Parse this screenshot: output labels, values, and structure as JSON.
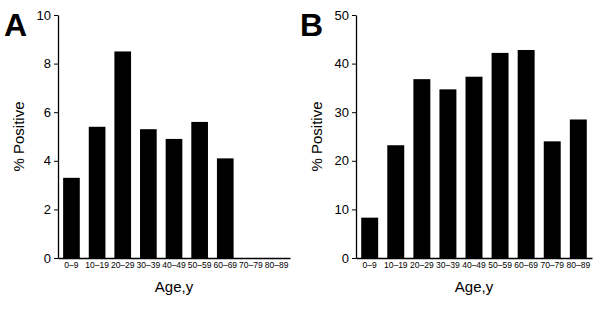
{
  "chart_data": [
    {
      "type": "bar",
      "title": "A",
      "categories": [
        "0–9",
        "10–19",
        "20–29",
        "30–39",
        "40–49",
        "50–59",
        "60–69",
        "70–79",
        "80–89"
      ],
      "values": [
        3.3,
        5.4,
        8.5,
        5.3,
        4.9,
        5.6,
        4.1,
        0,
        0
      ],
      "color": "#000000",
      "x_label": "Age,y",
      "y_label": "% Positive",
      "ylim": [
        0,
        10
      ],
      "yticks": [
        0,
        2,
        4,
        6,
        8,
        10
      ],
      "grid": false
    },
    {
      "type": "bar",
      "title": "B",
      "categories": [
        "0–9",
        "10–19",
        "20–29",
        "30–39",
        "40–49",
        "50–59",
        "60–69",
        "70–79",
        "80–89"
      ],
      "values": [
        8.3,
        23.2,
        36.8,
        34.7,
        37.3,
        42.2,
        42.8,
        24.0,
        28.5
      ],
      "color": "#000000",
      "x_label": "Age,y",
      "y_label": "% Positive",
      "ylim": [
        0,
        50
      ],
      "yticks": [
        0,
        10,
        20,
        30,
        40,
        50
      ],
      "grid": false
    }
  ]
}
